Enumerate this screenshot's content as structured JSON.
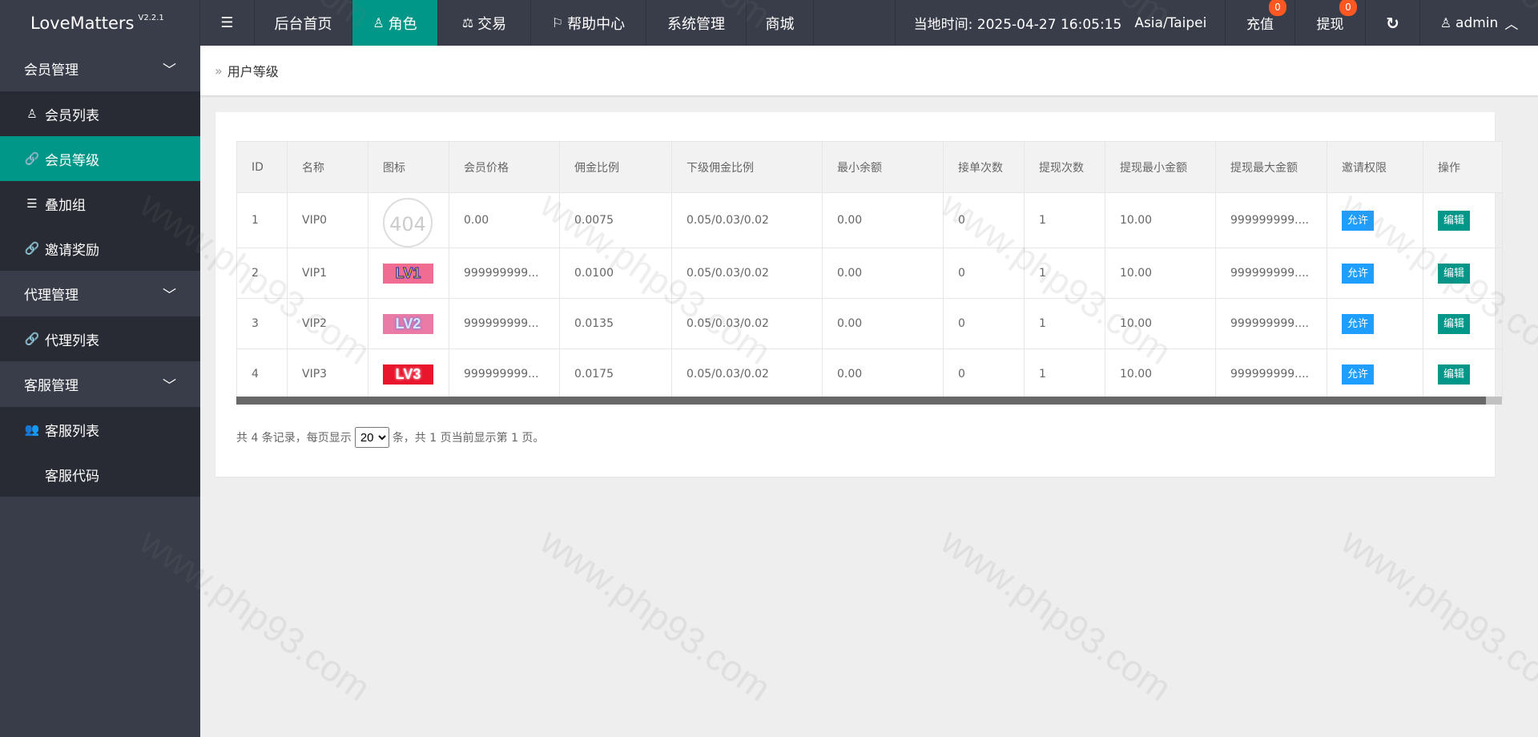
{
  "app": {
    "name": "LoveMatters",
    "version": "V2.2.1"
  },
  "topnav": [
    {
      "label": "后台首页",
      "icon": ""
    },
    {
      "label": "角色",
      "icon": "user-icon",
      "active": true
    },
    {
      "label": "交易",
      "icon": "scale-icon"
    },
    {
      "label": "帮助中心",
      "icon": "flag-icon"
    },
    {
      "label": "系统管理",
      "icon": ""
    },
    {
      "label": "商城",
      "icon": ""
    }
  ],
  "header_right": {
    "time_label": "当地时间: 2025-04-27 16:05:15",
    "timezone": "Asia/Taipei",
    "recharge": "充值",
    "recharge_badge": "0",
    "withdraw": "提现",
    "withdraw_badge": "0",
    "user": "admin"
  },
  "sidebar": [
    {
      "group": "会员管理",
      "items": [
        {
          "label": "会员列表",
          "icon": "user-icon"
        },
        {
          "label": "会员等级",
          "icon": "link-icon",
          "active": true
        },
        {
          "label": "叠加组",
          "icon": "list-icon"
        },
        {
          "label": "邀请奖励",
          "icon": "link-icon"
        }
      ]
    },
    {
      "group": "代理管理",
      "items": [
        {
          "label": "代理列表",
          "icon": "link-icon"
        }
      ]
    },
    {
      "group": "客服管理",
      "items": [
        {
          "label": "客服列表",
          "icon": "users-icon"
        },
        {
          "label": "客服代码",
          "icon": "code-icon"
        }
      ]
    }
  ],
  "breadcrumb": "用户等级",
  "table": {
    "columns": [
      "ID",
      "名称",
      "图标",
      "会员价格",
      "佣金比例",
      "下级佣金比例",
      "最小余额",
      "接单次数",
      "提现次数",
      "提现最小金额",
      "提现最大金额",
      "邀请权限",
      "操作"
    ],
    "rows": [
      {
        "id": "1",
        "name": "VIP0",
        "icon": "404",
        "price": "0.00",
        "rate": "0.0075",
        "sub_rate": "0.05/0.03/0.02",
        "min_balance": "0.00",
        "orders": "0",
        "withdraws": "1",
        "wmin": "10.00",
        "wmax": "999999999....",
        "invite": "允许",
        "action": "编辑"
      },
      {
        "id": "2",
        "name": "VIP1",
        "icon": "LV1",
        "price": "999999999...",
        "rate": "0.0100",
        "sub_rate": "0.05/0.03/0.02",
        "min_balance": "0.00",
        "orders": "0",
        "withdraws": "1",
        "wmin": "10.00",
        "wmax": "999999999....",
        "invite": "允许",
        "action": "编辑"
      },
      {
        "id": "3",
        "name": "VIP2",
        "icon": "LV2",
        "price": "999999999...",
        "rate": "0.0135",
        "sub_rate": "0.05/0.03/0.02",
        "min_balance": "0.00",
        "orders": "0",
        "withdraws": "1",
        "wmin": "10.00",
        "wmax": "999999999....",
        "invite": "允许",
        "action": "编辑"
      },
      {
        "id": "4",
        "name": "VIP3",
        "icon": "LV3",
        "price": "999999999...",
        "rate": "0.0175",
        "sub_rate": "0.05/0.03/0.02",
        "min_balance": "0.00",
        "orders": "0",
        "withdraws": "1",
        "wmin": "10.00",
        "wmax": "999999999....",
        "invite": "允许",
        "action": "编辑"
      }
    ]
  },
  "pager": {
    "prefix": "共 4 条记录，每页显示",
    "page_size": "20",
    "suffix": "条，共 1 页当前显示第 1 页。"
  },
  "watermark": "www.php93.com",
  "colors": {
    "header": "#393d49",
    "accent": "#009688",
    "allow": "#1e9fff",
    "badge": "#ff5722"
  }
}
